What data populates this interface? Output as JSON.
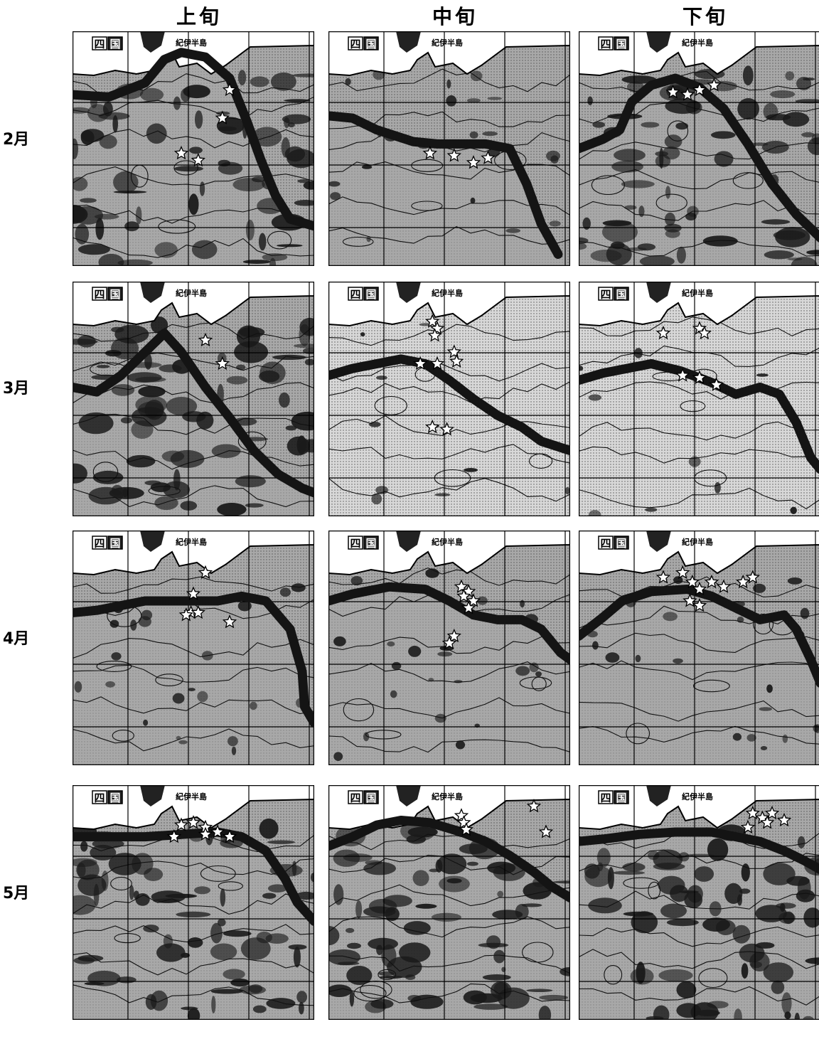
{
  "columns": [
    "上旬",
    "中旬",
    "下旬"
  ],
  "rows": [
    "2月",
    "3月",
    "4月",
    "5月"
  ],
  "map_labels": {
    "shikoku_char1": "四",
    "shikoku_char2": "国",
    "kii": "紀伊半島"
  },
  "colors": {
    "land": "#ffffff",
    "sea_light": "#d8d8d8",
    "sea_mid": "#a8a8a8",
    "sea_dark": "#6a6a6a",
    "patch": "#1a1a1a",
    "current": "#141414",
    "grid": "#000000"
  },
  "panels": [
    {
      "row": 0,
      "col": 0,
      "style": "dark",
      "stars": [
        [
          0.62,
          0.37
        ],
        [
          0.45,
          0.52
        ],
        [
          0.52,
          0.55
        ],
        [
          0.65,
          0.25
        ]
      ],
      "current": [
        [
          0,
          0.27
        ],
        [
          0.15,
          0.28
        ],
        [
          0.3,
          0.22
        ],
        [
          0.38,
          0.12
        ],
        [
          0.45,
          0.09
        ],
        [
          0.55,
          0.11
        ],
        [
          0.65,
          0.2
        ],
        [
          0.72,
          0.38
        ],
        [
          0.78,
          0.55
        ],
        [
          0.84,
          0.7
        ],
        [
          0.9,
          0.8
        ],
        [
          1,
          0.83
        ]
      ]
    },
    {
      "row": 0,
      "col": 1,
      "style": "mid",
      "stars": [
        [
          0.42,
          0.52
        ],
        [
          0.52,
          0.53
        ],
        [
          0.6,
          0.56
        ],
        [
          0.66,
          0.54
        ]
      ],
      "current": [
        [
          0,
          0.36
        ],
        [
          0.1,
          0.37
        ],
        [
          0.2,
          0.42
        ],
        [
          0.35,
          0.47
        ],
        [
          0.45,
          0.48
        ],
        [
          0.55,
          0.48
        ],
        [
          0.65,
          0.48
        ],
        [
          0.75,
          0.5
        ],
        [
          0.82,
          0.65
        ],
        [
          0.88,
          0.82
        ],
        [
          0.95,
          0.95
        ]
      ]
    },
    {
      "row": 0,
      "col": 2,
      "style": "dark",
      "stars": [
        [
          0.39,
          0.26
        ],
        [
          0.45,
          0.27
        ],
        [
          0.5,
          0.25
        ],
        [
          0.56,
          0.23
        ]
      ],
      "current": [
        [
          0,
          0.5
        ],
        [
          0.1,
          0.46
        ],
        [
          0.17,
          0.42
        ],
        [
          0.22,
          0.3
        ],
        [
          0.3,
          0.23
        ],
        [
          0.4,
          0.2
        ],
        [
          0.5,
          0.24
        ],
        [
          0.6,
          0.33
        ],
        [
          0.7,
          0.48
        ],
        [
          0.8,
          0.65
        ],
        [
          0.9,
          0.78
        ],
        [
          1,
          0.88
        ]
      ]
    },
    {
      "row": 1,
      "col": 0,
      "style": "dark",
      "stars": [
        [
          0.55,
          0.25
        ],
        [
          0.62,
          0.35
        ]
      ],
      "current": [
        [
          0,
          0.45
        ],
        [
          0.1,
          0.47
        ],
        [
          0.2,
          0.4
        ],
        [
          0.3,
          0.3
        ],
        [
          0.38,
          0.22
        ],
        [
          0.45,
          0.3
        ],
        [
          0.55,
          0.45
        ],
        [
          0.65,
          0.58
        ],
        [
          0.75,
          0.72
        ],
        [
          0.85,
          0.82
        ],
        [
          0.95,
          0.88
        ],
        [
          1,
          0.9
        ]
      ]
    },
    {
      "row": 1,
      "col": 1,
      "style": "light",
      "stars": [
        [
          0.43,
          0.17
        ],
        [
          0.45,
          0.2
        ],
        [
          0.44,
          0.23
        ],
        [
          0.52,
          0.3
        ],
        [
          0.53,
          0.34
        ],
        [
          0.45,
          0.35
        ],
        [
          0.38,
          0.35
        ],
        [
          0.43,
          0.62
        ],
        [
          0.49,
          0.63
        ]
      ],
      "current": [
        [
          0,
          0.4
        ],
        [
          0.1,
          0.37
        ],
        [
          0.2,
          0.35
        ],
        [
          0.3,
          0.33
        ],
        [
          0.4,
          0.35
        ],
        [
          0.5,
          0.42
        ],
        [
          0.6,
          0.5
        ],
        [
          0.7,
          0.57
        ],
        [
          0.8,
          0.62
        ],
        [
          0.88,
          0.68
        ],
        [
          1,
          0.72
        ]
      ]
    },
    {
      "row": 1,
      "col": 2,
      "style": "light",
      "stars": [
        [
          0.35,
          0.22
        ],
        [
          0.5,
          0.2
        ],
        [
          0.52,
          0.22
        ],
        [
          0.43,
          0.4
        ],
        [
          0.5,
          0.41
        ],
        [
          0.57,
          0.44
        ]
      ],
      "current": [
        [
          0,
          0.42
        ],
        [
          0.1,
          0.39
        ],
        [
          0.2,
          0.37
        ],
        [
          0.3,
          0.35
        ],
        [
          0.42,
          0.38
        ],
        [
          0.55,
          0.43
        ],
        [
          0.65,
          0.48
        ],
        [
          0.75,
          0.45
        ],
        [
          0.83,
          0.48
        ],
        [
          0.9,
          0.6
        ],
        [
          0.96,
          0.75
        ],
        [
          1,
          0.8
        ]
      ]
    },
    {
      "row": 2,
      "col": 0,
      "style": "mid",
      "stars": [
        [
          0.55,
          0.18
        ],
        [
          0.5,
          0.27
        ],
        [
          0.49,
          0.35
        ],
        [
          0.47,
          0.36
        ],
        [
          0.52,
          0.35
        ],
        [
          0.65,
          0.39
        ]
      ],
      "current": [
        [
          0,
          0.35
        ],
        [
          0.1,
          0.34
        ],
        [
          0.2,
          0.32
        ],
        [
          0.3,
          0.3
        ],
        [
          0.45,
          0.3
        ],
        [
          0.6,
          0.3
        ],
        [
          0.7,
          0.28
        ],
        [
          0.8,
          0.3
        ],
        [
          0.9,
          0.42
        ],
        [
          0.95,
          0.6
        ],
        [
          0.96,
          0.75
        ],
        [
          1,
          0.82
        ]
      ]
    },
    {
      "row": 2,
      "col": 1,
      "style": "mid",
      "stars": [
        [
          0.55,
          0.24
        ],
        [
          0.58,
          0.26
        ],
        [
          0.56,
          0.28
        ],
        [
          0.6,
          0.3
        ],
        [
          0.58,
          0.33
        ],
        [
          0.52,
          0.45
        ],
        [
          0.5,
          0.48
        ]
      ],
      "current": [
        [
          0,
          0.3
        ],
        [
          0.1,
          0.27
        ],
        [
          0.25,
          0.24
        ],
        [
          0.4,
          0.25
        ],
        [
          0.5,
          0.3
        ],
        [
          0.6,
          0.36
        ],
        [
          0.7,
          0.38
        ],
        [
          0.8,
          0.38
        ],
        [
          0.88,
          0.42
        ],
        [
          0.96,
          0.52
        ],
        [
          1,
          0.55
        ]
      ]
    },
    {
      "row": 2,
      "col": 2,
      "style": "mid",
      "stars": [
        [
          0.35,
          0.2
        ],
        [
          0.43,
          0.18
        ],
        [
          0.47,
          0.22
        ],
        [
          0.5,
          0.25
        ],
        [
          0.55,
          0.22
        ],
        [
          0.6,
          0.24
        ],
        [
          0.68,
          0.22
        ],
        [
          0.72,
          0.2
        ],
        [
          0.46,
          0.3
        ],
        [
          0.5,
          0.32
        ]
      ],
      "current": [
        [
          0,
          0.45
        ],
        [
          0.1,
          0.37
        ],
        [
          0.18,
          0.3
        ],
        [
          0.3,
          0.26
        ],
        [
          0.45,
          0.25
        ],
        [
          0.55,
          0.28
        ],
        [
          0.65,
          0.33
        ],
        [
          0.75,
          0.38
        ],
        [
          0.85,
          0.36
        ],
        [
          0.9,
          0.42
        ],
        [
          0.96,
          0.55
        ],
        [
          1,
          0.65
        ]
      ]
    },
    {
      "row": 3,
      "col": 0,
      "style": "dark",
      "stars": [
        [
          0.45,
          0.17
        ],
        [
          0.5,
          0.16
        ],
        [
          0.55,
          0.18
        ],
        [
          0.6,
          0.2
        ],
        [
          0.65,
          0.22
        ],
        [
          0.55,
          0.21
        ],
        [
          0.42,
          0.22
        ]
      ],
      "current": [
        [
          0,
          0.22
        ],
        [
          0.15,
          0.22
        ],
        [
          0.3,
          0.22
        ],
        [
          0.45,
          0.21
        ],
        [
          0.6,
          0.2
        ],
        [
          0.7,
          0.22
        ],
        [
          0.8,
          0.28
        ],
        [
          0.88,
          0.4
        ],
        [
          0.93,
          0.5
        ],
        [
          1,
          0.58
        ]
      ]
    },
    {
      "row": 3,
      "col": 1,
      "style": "dark",
      "stars": [
        [
          0.55,
          0.13
        ],
        [
          0.56,
          0.16
        ],
        [
          0.57,
          0.19
        ],
        [
          0.85,
          0.09
        ],
        [
          0.9,
          0.2
        ]
      ],
      "current": [
        [
          0,
          0.26
        ],
        [
          0.1,
          0.22
        ],
        [
          0.2,
          0.17
        ],
        [
          0.3,
          0.15
        ],
        [
          0.42,
          0.16
        ],
        [
          0.55,
          0.2
        ],
        [
          0.65,
          0.24
        ],
        [
          0.75,
          0.3
        ],
        [
          0.85,
          0.37
        ],
        [
          0.92,
          0.43
        ],
        [
          1,
          0.48
        ]
      ]
    },
    {
      "row": 3,
      "col": 2,
      "style": "dark",
      "stars": [
        [
          0.72,
          0.12
        ],
        [
          0.76,
          0.14
        ],
        [
          0.8,
          0.12
        ],
        [
          0.78,
          0.16
        ],
        [
          0.85,
          0.15
        ],
        [
          0.7,
          0.18
        ]
      ],
      "current": [
        [
          0,
          0.24
        ],
        [
          0.1,
          0.23
        ],
        [
          0.25,
          0.21
        ],
        [
          0.4,
          0.2
        ],
        [
          0.55,
          0.2
        ],
        [
          0.65,
          0.22
        ],
        [
          0.75,
          0.24
        ],
        [
          0.85,
          0.28
        ],
        [
          0.93,
          0.32
        ],
        [
          1,
          0.36
        ]
      ]
    }
  ]
}
